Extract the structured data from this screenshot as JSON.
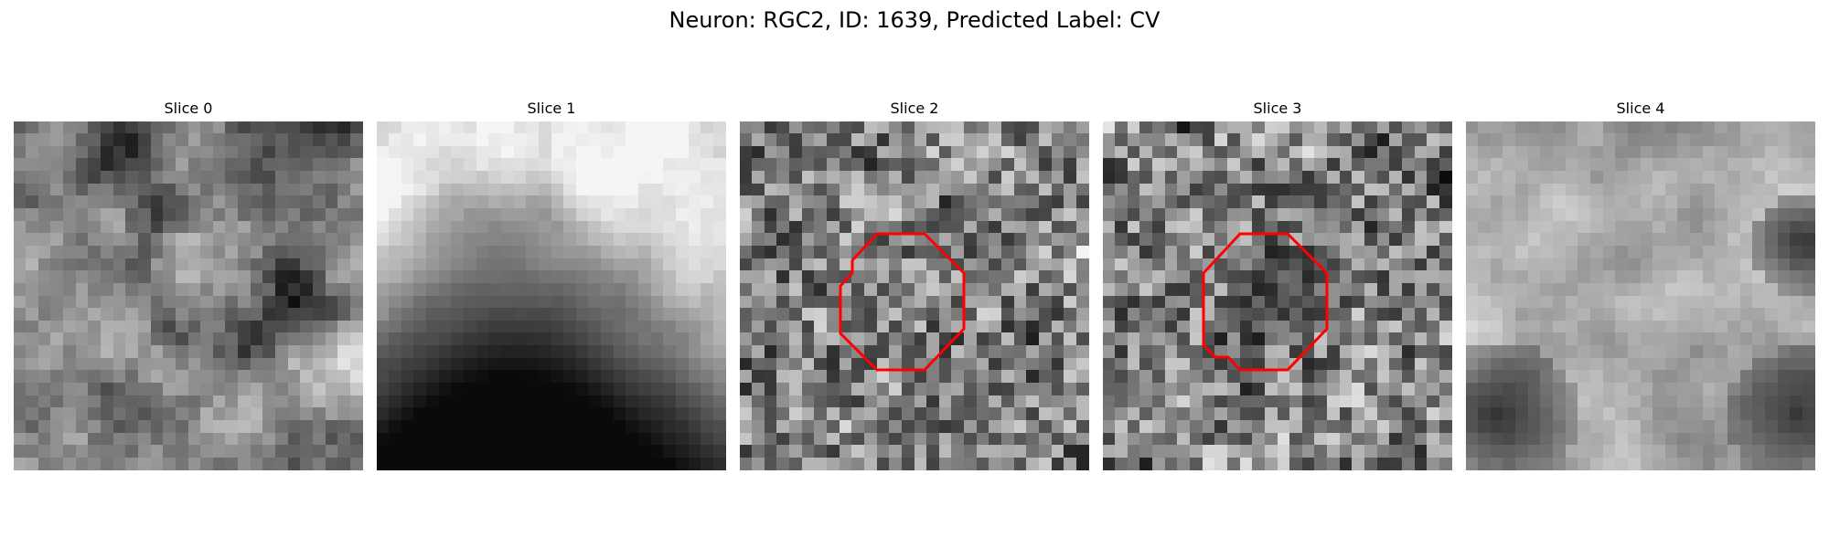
{
  "figure": {
    "title": "Neuron: RGC2, ID: 1639, Predicted Label: CV"
  },
  "panels": [
    {
      "title": "Slice 0",
      "pattern": "blobby-mixed",
      "seed": 11,
      "roi": false
    },
    {
      "title": "Slice 1",
      "pattern": "bright-top-dark-bottom",
      "seed": 23,
      "roi": false
    },
    {
      "title": "Slice 2",
      "pattern": "noisy",
      "seed": 37,
      "roi": true
    },
    {
      "title": "Slice 3",
      "pattern": "noisy-dark-center",
      "seed": 41,
      "roi": true
    },
    {
      "title": "Slice 4",
      "pattern": "bright-center-dark-corners",
      "seed": 53,
      "roi": false
    }
  ],
  "style": {
    "roi_color": "#ff0000",
    "colormap": "gray"
  }
}
